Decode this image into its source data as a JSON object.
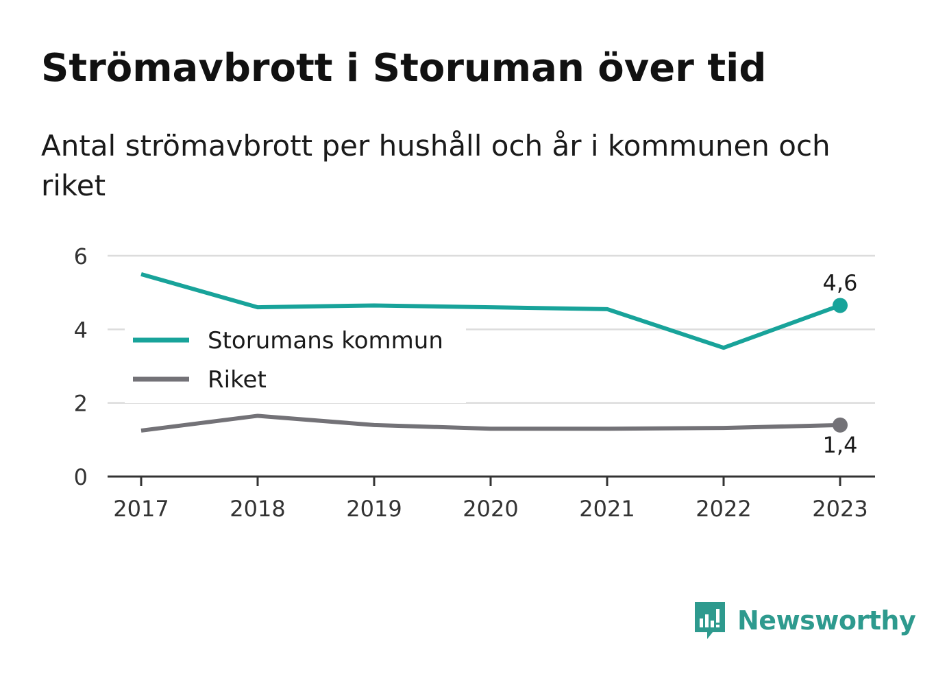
{
  "header": {
    "title": "Strömavbrott i Storuman över tid",
    "subtitle": "Antal strömavbrott per hushåll och år i kommunen och riket"
  },
  "branding": {
    "name": "Newsworthy",
    "logo_icon": "newsworthy-bar-chart-bubble-icon",
    "color": "#2e9a8e"
  },
  "chart_data": {
    "type": "line",
    "title": "",
    "xlabel": "",
    "ylabel": "",
    "x": [
      "2017",
      "2018",
      "2019",
      "2020",
      "2021",
      "2022",
      "2023"
    ],
    "ylim": [
      0,
      6
    ],
    "yticks": [
      "0",
      "2",
      "4",
      "6"
    ],
    "grid": true,
    "legend_position": "left",
    "series": [
      {
        "name": "Storumans kommun",
        "color": "#18a39a",
        "values": [
          5.5,
          4.6,
          4.65,
          4.6,
          4.55,
          3.5,
          4.65
        ],
        "end_label": "4,6",
        "end_label_position": "above"
      },
      {
        "name": "Riket",
        "color": "#737277",
        "values": [
          1.25,
          1.65,
          1.4,
          1.3,
          1.3,
          1.32,
          1.4
        ],
        "end_label": "1,4",
        "end_label_position": "below"
      }
    ]
  }
}
